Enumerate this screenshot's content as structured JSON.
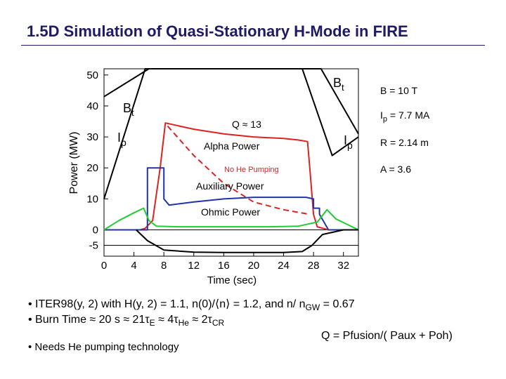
{
  "slide": {
    "title": "1.5D Simulation of Quasi-Stationary H-Mode in FIRE",
    "bullets": {
      "iter98": {
        "lead": "ITER98(y, 2) with H(y, 2) = 1.1, n(0)/⟨n⟩ = 1.2, and n/ n",
        "sub": "GW",
        "tail": " = 0.67"
      },
      "burn_time": {
        "a": "Burn Time ≈ 20 s ≈ 21τ",
        "a_sub": "E",
        "b": " ≈ 4τ",
        "b_sub": "He",
        "c": " ≈ 2τ",
        "c_sub": "CR"
      },
      "needs": "• Needs He pumping technology"
    },
    "q_definition": "Q = Pfusion/( Paux + Poh)",
    "parameters": {
      "bt": "B = 10 T",
      "ip": {
        "lead": "I",
        "sub": "p",
        "tail": " = 7.7 MA"
      },
      "r": "R = 2.14 m",
      "a": "A = 3.6"
    }
  },
  "chart_data": {
    "type": "line",
    "xlabel": "Time (sec)",
    "ylabel": "Power (MW)",
    "xlim": [
      0,
      34
    ],
    "ylim": [
      -8.5,
      52
    ],
    "x_ticks": [
      0,
      4,
      8,
      12,
      16,
      20,
      24,
      28,
      32
    ],
    "y_ticks": [
      50,
      40,
      30,
      20,
      10,
      0,
      -5
    ],
    "hlines": [
      0,
      -5
    ],
    "series": [
      {
        "name": "Bt",
        "color": "#000000",
        "x": [
          0,
          6,
          8,
          27,
          29,
          34
        ],
        "y": [
          43,
          52,
          52,
          52,
          52,
          31
        ]
      },
      {
        "name": "Ip",
        "color": "#000000",
        "x": [
          0,
          5.5,
          26.5,
          30.5,
          34
        ],
        "y": [
          10,
          52,
          52,
          24,
          30
        ]
      },
      {
        "name": "Alpha Power",
        "color": "#dd2222",
        "x": [
          0,
          4.8,
          5.5,
          6.5,
          7.5,
          8.2,
          12,
          16,
          20,
          24,
          26,
          27.2,
          27.5,
          28,
          28.5,
          30,
          34
        ],
        "y": [
          0,
          0,
          0.5,
          3,
          20,
          34.5,
          32.5,
          31,
          30,
          29.5,
          29,
          28.5,
          20,
          5,
          1,
          0,
          0
        ]
      },
      {
        "name": "Alpha Power (No He Pumping)",
        "color": "#dd2222",
        "dashed": true,
        "x": [
          8.5,
          12,
          16,
          20,
          24,
          27.5
        ],
        "y": [
          33.5,
          24,
          15,
          9,
          6.5,
          5
        ]
      },
      {
        "name": "Auxiliary Power",
        "color": "#2233aa",
        "x": [
          0,
          5.8,
          5.8,
          8,
          8,
          8.7,
          12,
          16,
          20,
          24,
          27,
          28,
          28,
          28.8,
          28.8,
          30,
          34
        ],
        "y": [
          0,
          0,
          20,
          20,
          10,
          8,
          9,
          10,
          10.5,
          10.5,
          10.5,
          10,
          7,
          7,
          5,
          0,
          0
        ]
      },
      {
        "name": "Ohmic Power",
        "color": "#22cc33",
        "x": [
          0,
          2,
          4,
          5.3,
          6,
          7,
          10,
          16,
          22,
          26,
          27.5,
          28.5,
          29.8,
          31,
          34
        ],
        "y": [
          0,
          3,
          5.5,
          7,
          3,
          1.2,
          1,
          1,
          1,
          1.2,
          2,
          2.5,
          6.5,
          3.5,
          0
        ]
      },
      {
        "name": "Bt (lower)",
        "color": "#000000",
        "x": [
          4.3,
          5.8,
          8,
          12,
          16,
          20,
          24,
          26.5,
          27.8,
          29.2,
          32,
          34
        ],
        "y": [
          0,
          -3.5,
          -6.5,
          -7.2,
          -7.3,
          -7.3,
          -7.3,
          -7,
          -5,
          -1.5,
          0,
          0
        ]
      }
    ],
    "curve_labels": {
      "bt_left": {
        "text": "B",
        "sub": "t"
      },
      "bt_right": {
        "text": "B",
        "sub": "t"
      },
      "ip_left": {
        "text": "I",
        "sub": "p"
      },
      "ip_right": {
        "text": "I",
        "sub": "p"
      },
      "q": "Q ≈ 13",
      "alpha": "Alpha Power",
      "no_he": "No He Pumping",
      "aux": "Auxiliary Power",
      "ohmic": "Ohmic Power"
    }
  }
}
